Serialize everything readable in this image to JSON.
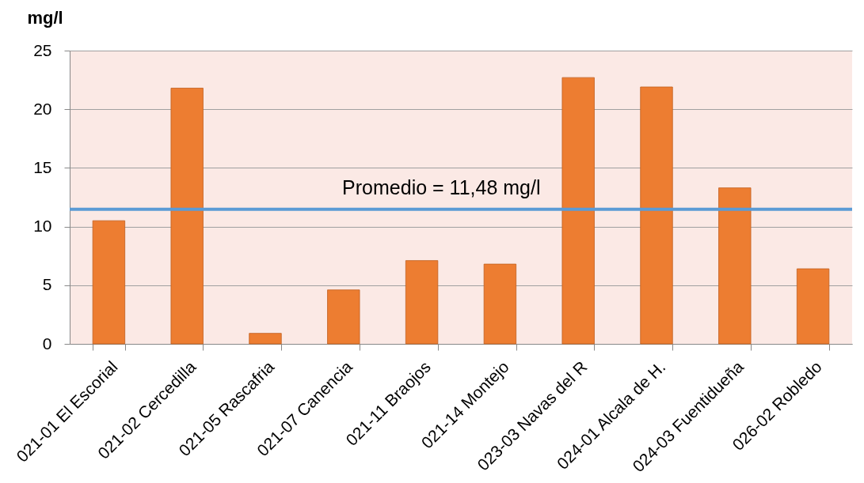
{
  "chart_data": {
    "type": "bar",
    "ylabel": "mg/l",
    "categories": [
      "021-01 El Escorial",
      "021-02 Cercedilla",
      "021-05 Rascafria",
      "021-07 Canencia",
      "021-11 Braojos",
      "021-14 Montejo",
      "023-03 Navas del R",
      "024-01 Alcala de H.",
      "024-03 Fuentidueña",
      "026-02 Robledo"
    ],
    "values": [
      10.5,
      21.8,
      0.9,
      4.6,
      7.1,
      6.8,
      22.7,
      21.9,
      13.3,
      6.4
    ],
    "color": "#ed7d31",
    "ylim": [
      0,
      25
    ],
    "yticks": [
      0,
      5,
      10,
      15,
      20,
      25
    ],
    "grid": "y",
    "ref_lines": [
      {
        "axis": "y",
        "value": 11.48,
        "label": "Promedio = 11,48 mg/l",
        "color": "#5b9bd5"
      }
    ]
  }
}
